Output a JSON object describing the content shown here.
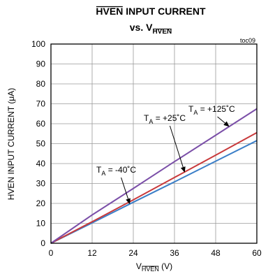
{
  "chart_data": {
    "type": "line",
    "title": {
      "line1_main": "HVEN",
      "line1_rest": " INPUT CURRENT",
      "line2_prefix": "vs. V",
      "line2_sub": "HVEN"
    },
    "tag": "toc09",
    "xlabel": {
      "prefix": "V",
      "sub": "HVEN",
      "suffix": " (V)"
    },
    "ylabel": "HVEN INPUT CURRENT (μA)",
    "xlim": [
      0,
      60
    ],
    "ylim": [
      0,
      100
    ],
    "x_ticks": [
      "0",
      "12",
      "24",
      "36",
      "48",
      "60"
    ],
    "y_ticks": [
      "0",
      "10",
      "20",
      "30",
      "40",
      "50",
      "60",
      "70",
      "80",
      "90",
      "100"
    ],
    "grid": true,
    "series": [
      {
        "name": {
          "t": "T",
          "sub": "A",
          "rest": " = -40˚C"
        },
        "color": "#3b7fc8",
        "x": [
          0,
          12,
          24,
          36,
          48,
          60
        ],
        "y": [
          0,
          10.2,
          20.6,
          30.8,
          41.2,
          51.5
        ],
        "annotation_target": [
          23,
          19.6
        ]
      },
      {
        "name": {
          "t": "T",
          "sub": "A",
          "rest": " = +25˚C"
        },
        "color": "#c8393b",
        "x": [
          0,
          12,
          24,
          36,
          48,
          60
        ],
        "y": [
          0,
          10.8,
          21.8,
          33.0,
          44.2,
          55.5
        ],
        "annotation_target": [
          39,
          35.5
        ]
      },
      {
        "name": {
          "t": "T",
          "sub": "A",
          "rest": " = +125˚C"
        },
        "color": "#7b4fa8",
        "x": [
          0,
          12,
          24,
          36,
          48,
          60
        ],
        "y": [
          0,
          14.2,
          27.5,
          41.0,
          54.2,
          67.5
        ],
        "annotation_target": [
          52,
          58.5
        ]
      }
    ]
  }
}
